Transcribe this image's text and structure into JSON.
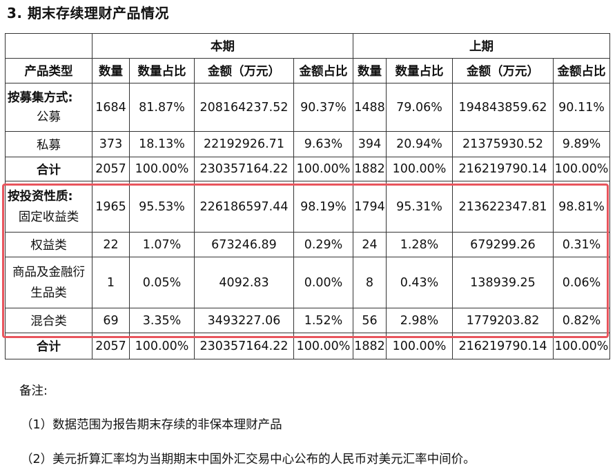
{
  "title": "3.  期末存续理财产品情况",
  "header": {
    "current_period": "本期",
    "prior_period": "上期",
    "product_type": "产品类型",
    "count": "数量",
    "count_share": "数量占比",
    "amount": "金额（万元）",
    "amount_share": "金额占比"
  },
  "sections": {
    "by_raising": "按募集方式:",
    "by_nature": "按投资性质:"
  },
  "rows": [
    {
      "label": "公募",
      "cur": [
        "1684",
        "81.87%",
        "208164237.52",
        "90.37%"
      ],
      "prev": [
        "1488",
        "79.06%",
        "194843859.62",
        "90.11%"
      ]
    },
    {
      "label": "私募",
      "cur": [
        "373",
        "18.13%",
        "22192926.71",
        "9.63%"
      ],
      "prev": [
        "394",
        "20.94%",
        "21375930.52",
        "9.89%"
      ]
    },
    {
      "label": "合计",
      "cur": [
        "2057",
        "100.00%",
        "230357164.22",
        "100.00%"
      ],
      "prev": [
        "1882",
        "100.00%",
        "216219790.14",
        "100.00%"
      ]
    },
    {
      "label": "固定收益类",
      "cur": [
        "1965",
        "95.53%",
        "226186597.44",
        "98.19%"
      ],
      "prev": [
        "1794",
        "95.31%",
        "213622347.81",
        "98.81%"
      ]
    },
    {
      "label": "权益类",
      "cur": [
        "22",
        "1.07%",
        "673246.89",
        "0.29%"
      ],
      "prev": [
        "24",
        "1.28%",
        "679299.26",
        "0.31%"
      ]
    },
    {
      "label_line1": "商品及金融衍",
      "label_line2": "生品类",
      "cur": [
        "1",
        "0.05%",
        "4092.83",
        "0.00%"
      ],
      "prev": [
        "8",
        "0.43%",
        "138939.25",
        "0.06%"
      ]
    },
    {
      "label": "混合类",
      "cur": [
        "69",
        "3.35%",
        "3493227.06",
        "1.52%"
      ],
      "prev": [
        "56",
        "2.98%",
        "1779203.82",
        "0.82%"
      ]
    },
    {
      "label": "合计",
      "cur": [
        "2057",
        "100.00%",
        "230357164.22",
        "100.00%"
      ],
      "prev": [
        "1882",
        "100.00%",
        "216219790.14",
        "100.00%"
      ]
    }
  ],
  "notes": {
    "heading": "备注:",
    "n1": "（1）数据范围为报告期末存续的非保本理财产品",
    "n2": "（2）美元折算汇率均为当期期末中国外汇交易中心公布的人民币对美元汇率中间价。"
  },
  "highlight_color": "#e8545c"
}
